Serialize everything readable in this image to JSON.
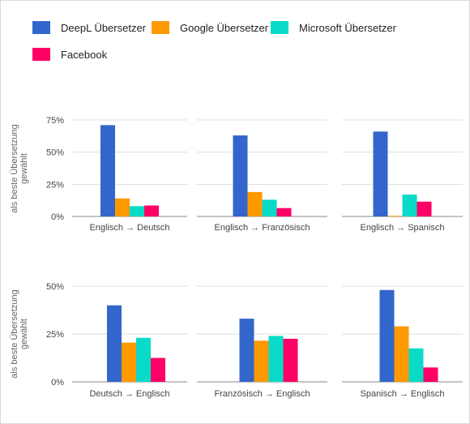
{
  "legend": [
    {
      "label": "DeepL Übersetzer",
      "color": "#3366cc"
    },
    {
      "label": "Google Übersetzer",
      "color": "#ff9900"
    },
    {
      "label": "Microsoft Übersetzer",
      "color": "#0adbc8"
    },
    {
      "label": "Facebook",
      "color": "#ff0066"
    }
  ],
  "chart_data": [
    {
      "type": "bar",
      "ylabel": "als beste Übersetzung gewählt",
      "yticks": [
        "0%",
        "25%",
        "50%",
        "75%"
      ],
      "ylim": [
        0,
        75
      ],
      "grid": true,
      "legend_position": "top",
      "panels": [
        {
          "xlabel": "Englisch → Deutsch",
          "values": [
            71,
            14,
            8,
            8.5
          ]
        },
        {
          "xlabel": "Englisch → Französisch",
          "values": [
            63,
            19,
            13,
            6.5
          ]
        },
        {
          "xlabel": "Englisch → Spanisch",
          "values": [
            66,
            0.5,
            17,
            11.5
          ]
        }
      ],
      "series": [
        "DeepL Übersetzer",
        "Google Übersetzer",
        "Microsoft Übersetzer",
        "Facebook"
      ]
    },
    {
      "type": "bar",
      "ylabel": "als beste Übersetzung gewählt",
      "yticks": [
        "0%",
        "25%",
        "50%"
      ],
      "ylim": [
        0,
        50
      ],
      "grid": true,
      "legend_position": "top",
      "panels": [
        {
          "xlabel": "Deutsch → Englisch",
          "values": [
            40,
            20.5,
            23,
            12.5
          ]
        },
        {
          "xlabel": "Französisch → Englisch",
          "values": [
            33,
            21.5,
            24,
            22.5
          ]
        },
        {
          "xlabel": "Spanisch → Englisch",
          "values": [
            48,
            29,
            17.5,
            7.5
          ]
        }
      ],
      "series": [
        "DeepL Übersetzer",
        "Google Übersetzer",
        "Microsoft Übersetzer",
        "Facebook"
      ]
    }
  ]
}
